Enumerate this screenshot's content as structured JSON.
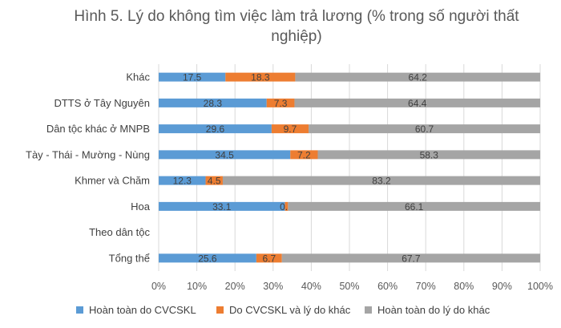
{
  "chart_data": {
    "type": "bar",
    "orientation": "horizontal",
    "stacked": true,
    "title": "Hình 5. Lý do không tìm việc làm trả lương (% trong số người thất nghiệp)",
    "categories": [
      "Khác",
      "DTTS ở Tây Nguyên",
      "Dân tộc khác ở MNPB",
      "Tày - Thái - Mường - Nùng",
      "Khmer và Chăm",
      "Hoa",
      "Theo dân tộc",
      "Tổng thể"
    ],
    "series": [
      {
        "name": "Hoàn toàn do CVCSKL",
        "color": "#5B9BD5",
        "values": [
          17.5,
          28.3,
          29.6,
          34.5,
          12.3,
          33.1,
          null,
          25.6
        ]
      },
      {
        "name": "Do CVCSKL và lý do khác",
        "color": "#ED7D31",
        "values": [
          18.3,
          7.3,
          9.7,
          7.2,
          4.5,
          0.8,
          null,
          6.7
        ]
      },
      {
        "name": "Hoàn toàn do lý do khác",
        "color": "#A5A5A5",
        "values": [
          64.2,
          64.4,
          60.7,
          58.3,
          83.2,
          66.1,
          null,
          67.7
        ]
      }
    ],
    "xlim": [
      0,
      100
    ],
    "xticks": [
      "0%",
      "10%",
      "20%",
      "30%",
      "40%",
      "50%",
      "60%",
      "70%",
      "80%",
      "90%",
      "100%"
    ],
    "grid": "vertical",
    "legend": "bottom"
  }
}
